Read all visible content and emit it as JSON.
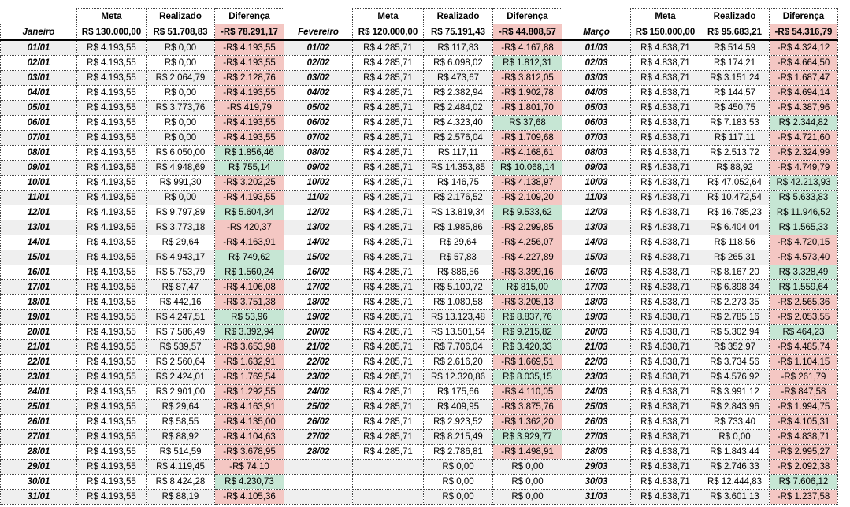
{
  "header": {
    "columns": [
      "Meta",
      "Realizado",
      "Diferença"
    ]
  },
  "months": [
    {
      "name": "Janeiro",
      "totals": [
        "R$ 130.000,00",
        "R$ 51.708,83",
        "-R$ 78.291,17"
      ],
      "rows": [
        [
          "01/01",
          "R$ 4.193,55",
          "R$ 0,00",
          "-R$ 4.193,55"
        ],
        [
          "02/01",
          "R$ 4.193,55",
          "R$ 0,00",
          "-R$ 4.193,55"
        ],
        [
          "03/01",
          "R$ 4.193,55",
          "R$ 2.064,79",
          "-R$ 2.128,76"
        ],
        [
          "04/01",
          "R$ 4.193,55",
          "R$ 0,00",
          "-R$ 4.193,55"
        ],
        [
          "05/01",
          "R$ 4.193,55",
          "R$ 3.773,76",
          "-R$ 419,79"
        ],
        [
          "06/01",
          "R$ 4.193,55",
          "R$ 0,00",
          "-R$ 4.193,55"
        ],
        [
          "07/01",
          "R$ 4.193,55",
          "R$ 0,00",
          "-R$ 4.193,55"
        ],
        [
          "08/01",
          "R$ 4.193,55",
          "R$ 6.050,00",
          "R$ 1.856,46"
        ],
        [
          "09/01",
          "R$ 4.193,55",
          "R$ 4.948,69",
          "R$ 755,14"
        ],
        [
          "10/01",
          "R$ 4.193,55",
          "R$ 991,30",
          "-R$ 3.202,25"
        ],
        [
          "11/01",
          "R$ 4.193,55",
          "R$ 0,00",
          "-R$ 4.193,55"
        ],
        [
          "12/01",
          "R$ 4.193,55",
          "R$ 9.797,89",
          "R$ 5.604,34"
        ],
        [
          "13/01",
          "R$ 4.193,55",
          "R$ 3.773,18",
          "-R$ 420,37"
        ],
        [
          "14/01",
          "R$ 4.193,55",
          "R$ 29,64",
          "-R$ 4.163,91"
        ],
        [
          "15/01",
          "R$ 4.193,55",
          "R$ 4.943,17",
          "R$ 749,62"
        ],
        [
          "16/01",
          "R$ 4.193,55",
          "R$ 5.753,79",
          "R$ 1.560,24"
        ],
        [
          "17/01",
          "R$ 4.193,55",
          "R$ 87,47",
          "-R$ 4.106,08"
        ],
        [
          "18/01",
          "R$ 4.193,55",
          "R$ 442,16",
          "-R$ 3.751,38"
        ],
        [
          "19/01",
          "R$ 4.193,55",
          "R$ 4.247,51",
          "R$ 53,96"
        ],
        [
          "20/01",
          "R$ 4.193,55",
          "R$ 7.586,49",
          "R$ 3.392,94"
        ],
        [
          "21/01",
          "R$ 4.193,55",
          "R$ 539,57",
          "-R$ 3.653,98"
        ],
        [
          "22/01",
          "R$ 4.193,55",
          "R$ 2.560,64",
          "-R$ 1.632,91"
        ],
        [
          "23/01",
          "R$ 4.193,55",
          "R$ 2.424,01",
          "-R$ 1.769,54"
        ],
        [
          "24/01",
          "R$ 4.193,55",
          "R$ 2.901,00",
          "-R$ 1.292,55"
        ],
        [
          "25/01",
          "R$ 4.193,55",
          "R$ 29,64",
          "-R$ 4.163,91"
        ],
        [
          "26/01",
          "R$ 4.193,55",
          "R$ 58,55",
          "-R$ 4.135,00"
        ],
        [
          "27/01",
          "R$ 4.193,55",
          "R$ 88,92",
          "-R$ 4.104,63"
        ],
        [
          "28/01",
          "R$ 4.193,55",
          "R$ 514,59",
          "-R$ 3.678,95"
        ],
        [
          "29/01",
          "R$ 4.193,55",
          "R$ 4.119,45",
          "-R$ 74,10"
        ],
        [
          "30/01",
          "R$ 4.193,55",
          "R$ 8.424,28",
          "R$ 4.230,73"
        ],
        [
          "31/01",
          "R$ 4.193,55",
          "R$ 88,19",
          "-R$ 4.105,36"
        ]
      ]
    },
    {
      "name": "Fevereiro",
      "totals": [
        "R$ 120.000,00",
        "R$ 75.191,43",
        "-R$ 44.808,57"
      ],
      "rows": [
        [
          "01/02",
          "R$ 4.285,71",
          "R$ 117,83",
          "-R$ 4.167,88"
        ],
        [
          "02/02",
          "R$ 4.285,71",
          "R$ 6.098,02",
          "R$ 1.812,31"
        ],
        [
          "03/02",
          "R$ 4.285,71",
          "R$ 473,67",
          "-R$ 3.812,05"
        ],
        [
          "04/02",
          "R$ 4.285,71",
          "R$ 2.382,94",
          "-R$ 1.902,78"
        ],
        [
          "05/02",
          "R$ 4.285,71",
          "R$ 2.484,02",
          "-R$ 1.801,70"
        ],
        [
          "06/02",
          "R$ 4.285,71",
          "R$ 4.323,40",
          "R$ 37,68"
        ],
        [
          "07/02",
          "R$ 4.285,71",
          "R$ 2.576,04",
          "-R$ 1.709,68"
        ],
        [
          "08/02",
          "R$ 4.285,71",
          "R$ 117,11",
          "-R$ 4.168,61"
        ],
        [
          "09/02",
          "R$ 4.285,71",
          "R$ 14.353,85",
          "R$ 10.068,14"
        ],
        [
          "10/02",
          "R$ 4.285,71",
          "R$ 146,75",
          "-R$ 4.138,97"
        ],
        [
          "11/02",
          "R$ 4.285,71",
          "R$ 2.176,52",
          "-R$ 2.109,20"
        ],
        [
          "12/02",
          "R$ 4.285,71",
          "R$ 13.819,34",
          "R$ 9.533,62"
        ],
        [
          "13/02",
          "R$ 4.285,71",
          "R$ 1.985,86",
          "-R$ 2.299,85"
        ],
        [
          "14/02",
          "R$ 4.285,71",
          "R$ 29,64",
          "-R$ 4.256,07"
        ],
        [
          "15/02",
          "R$ 4.285,71",
          "R$ 57,83",
          "-R$ 4.227,89"
        ],
        [
          "16/02",
          "R$ 4.285,71",
          "R$ 886,56",
          "-R$ 3.399,16"
        ],
        [
          "17/02",
          "R$ 4.285,71",
          "R$ 5.100,72",
          "R$ 815,00"
        ],
        [
          "18/02",
          "R$ 4.285,71",
          "R$ 1.080,58",
          "-R$ 3.205,13"
        ],
        [
          "19/02",
          "R$ 4.285,71",
          "R$ 13.123,48",
          "R$ 8.837,76"
        ],
        [
          "20/02",
          "R$ 4.285,71",
          "R$ 13.501,54",
          "R$ 9.215,82"
        ],
        [
          "21/02",
          "R$ 4.285,71",
          "R$ 7.706,04",
          "R$ 3.420,33"
        ],
        [
          "22/02",
          "R$ 4.285,71",
          "R$ 2.616,20",
          "-R$ 1.669,51"
        ],
        [
          "23/02",
          "R$ 4.285,71",
          "R$ 12.320,86",
          "R$ 8.035,15"
        ],
        [
          "24/02",
          "R$ 4.285,71",
          "R$ 175,66",
          "-R$ 4.110,05"
        ],
        [
          "25/02",
          "R$ 4.285,71",
          "R$ 409,95",
          "-R$ 3.875,76"
        ],
        [
          "26/02",
          "R$ 4.285,71",
          "R$ 2.923,52",
          "-R$ 1.362,20"
        ],
        [
          "27/02",
          "R$ 4.285,71",
          "R$ 8.215,49",
          "R$ 3.929,77"
        ],
        [
          "28/02",
          "R$ 4.285,71",
          "R$ 2.786,81",
          "-R$ 1.498,91"
        ],
        [
          null,
          null,
          "R$ 0,00",
          "R$ 0,00"
        ],
        [
          null,
          null,
          "R$ 0,00",
          "R$ 0,00"
        ],
        [
          null,
          null,
          "R$ 0,00",
          "R$ 0,00"
        ]
      ]
    },
    {
      "name": "Março",
      "totals": [
        "R$ 150.000,00",
        "R$ 95.683,21",
        "-R$ 54.316,79"
      ],
      "rows": [
        [
          "01/03",
          "R$ 4.838,71",
          "R$ 514,59",
          "-R$ 4.324,12"
        ],
        [
          "02/03",
          "R$ 4.838,71",
          "R$ 174,21",
          "-R$ 4.664,50"
        ],
        [
          "03/03",
          "R$ 4.838,71",
          "R$ 3.151,24",
          "-R$ 1.687,47"
        ],
        [
          "04/03",
          "R$ 4.838,71",
          "R$ 144,57",
          "-R$ 4.694,14"
        ],
        [
          "05/03",
          "R$ 4.838,71",
          "R$ 450,75",
          "-R$ 4.387,96"
        ],
        [
          "06/03",
          "R$ 4.838,71",
          "R$ 7.183,53",
          "R$ 2.344,82"
        ],
        [
          "07/03",
          "R$ 4.838,71",
          "R$ 117,11",
          "-R$ 4.721,60"
        ],
        [
          "08/03",
          "R$ 4.838,71",
          "R$ 2.513,72",
          "-R$ 2.324,99"
        ],
        [
          "09/03",
          "R$ 4.838,71",
          "R$ 88,92",
          "-R$ 4.749,79"
        ],
        [
          "10/03",
          "R$ 4.838,71",
          "R$ 47.052,64",
          "R$ 42.213,93"
        ],
        [
          "11/03",
          "R$ 4.838,71",
          "R$ 10.472,54",
          "R$ 5.633,83"
        ],
        [
          "12/03",
          "R$ 4.838,71",
          "R$ 16.785,23",
          "R$ 11.946,52"
        ],
        [
          "13/03",
          "R$ 4.838,71",
          "R$ 6.404,04",
          "R$ 1.565,33"
        ],
        [
          "14/03",
          "R$ 4.838,71",
          "R$ 118,56",
          "-R$ 4.720,15"
        ],
        [
          "15/03",
          "R$ 4.838,71",
          "R$ 265,31",
          "-R$ 4.573,40"
        ],
        [
          "16/03",
          "R$ 4.838,71",
          "R$ 8.167,20",
          "R$ 3.328,49"
        ],
        [
          "17/03",
          "R$ 4.838,71",
          "R$ 6.398,34",
          "R$ 1.559,64"
        ],
        [
          "18/03",
          "R$ 4.838,71",
          "R$ 2.273,35",
          "-R$ 2.565,36"
        ],
        [
          "19/03",
          "R$ 4.838,71",
          "R$ 2.785,16",
          "-R$ 2.053,55"
        ],
        [
          "20/03",
          "R$ 4.838,71",
          "R$ 5.302,94",
          "R$ 464,23"
        ],
        [
          "21/03",
          "R$ 4.838,71",
          "R$ 352,97",
          "-R$ 4.485,74"
        ],
        [
          "22/03",
          "R$ 4.838,71",
          "R$ 3.734,56",
          "-R$ 1.104,15"
        ],
        [
          "23/03",
          "R$ 4.838,71",
          "R$ 4.576,92",
          "-R$ 261,79"
        ],
        [
          "24/03",
          "R$ 4.838,71",
          "R$ 3.991,12",
          "-R$ 847,58"
        ],
        [
          "25/03",
          "R$ 4.838,71",
          "R$ 2.843,96",
          "-R$ 1.994,75"
        ],
        [
          "26/03",
          "R$ 4.838,71",
          "R$ 733,40",
          "-R$ 4.105,31"
        ],
        [
          "27/03",
          "R$ 4.838,71",
          "R$ 0,00",
          "-R$ 4.838,71"
        ],
        [
          "28/03",
          "R$ 4.838,71",
          "R$ 1.843,44",
          "-R$ 2.995,27"
        ],
        [
          "29/03",
          "R$ 4.838,71",
          "R$ 2.746,33",
          "-R$ 2.092,38"
        ],
        [
          "30/03",
          "R$ 4.838,71",
          "R$ 12.444,83",
          "R$ 7.606,12"
        ],
        [
          "31/03",
          "R$ 4.838,71",
          "R$ 3.601,13",
          "-R$ 1.237,58"
        ]
      ]
    }
  ]
}
